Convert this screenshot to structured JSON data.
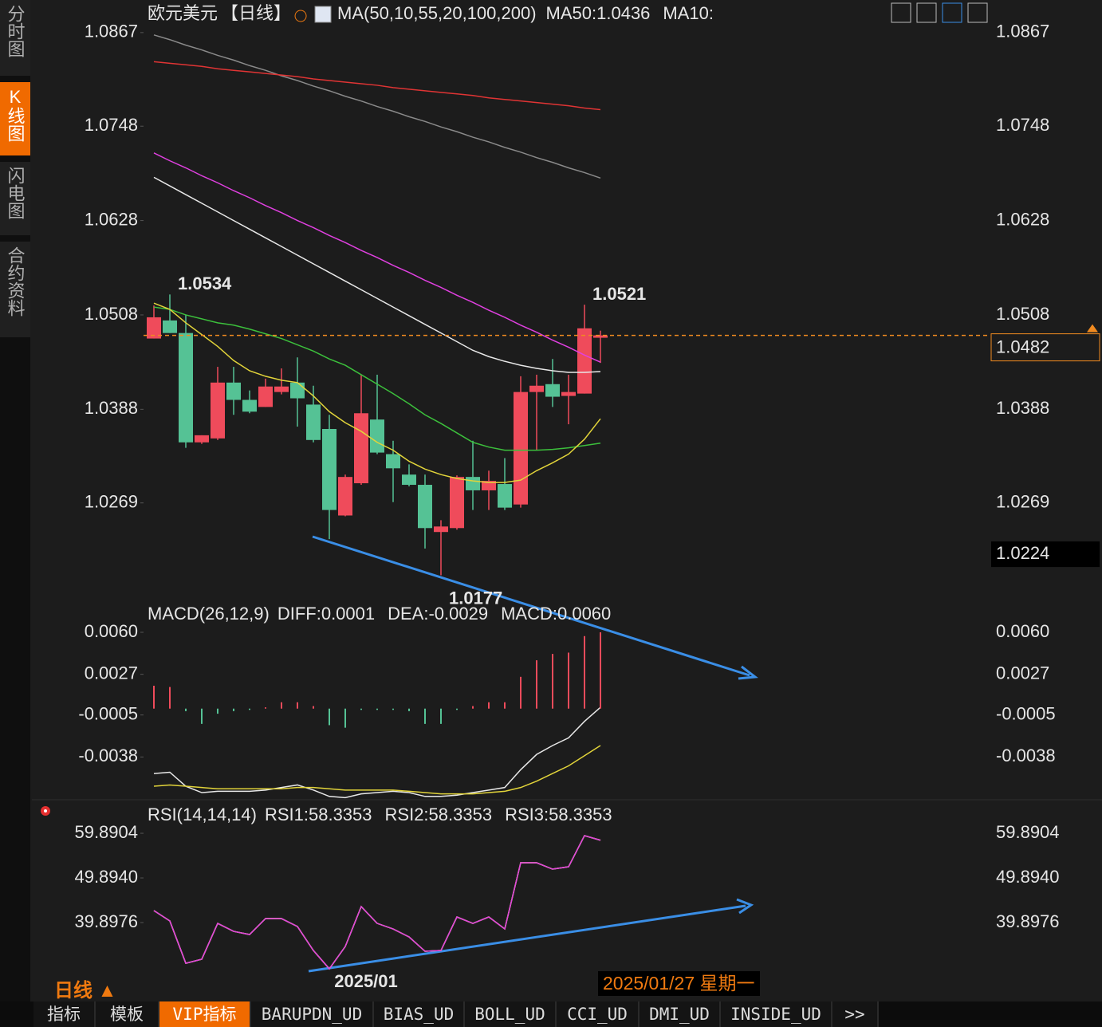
{
  "sidebar": {
    "tabs": [
      "分时图",
      "K线图",
      "闪电图",
      "合约资料"
    ],
    "active_tab": 1
  },
  "chart_data": [
    {
      "type": "candlestick",
      "title": "欧元美元",
      "period": "【日线】",
      "indicator": "MA(50,10,55,20,100,200)",
      "categories": [
        null,
        null,
        null,
        null,
        null,
        null,
        null,
        null,
        null,
        null,
        null,
        null,
        null,
        "2025/01",
        null,
        null,
        null,
        null,
        null,
        null,
        null,
        null,
        null,
        null,
        null,
        null,
        null,
        null,
        null
      ],
      "open": [
        1.0478,
        1.0501,
        1.0485,
        1.0346,
        1.0351,
        1.0422,
        1.04,
        1.0391,
        1.041,
        1.0422,
        1.0394,
        1.0363,
        1.0253,
        1.0294,
        1.0375,
        1.0331,
        1.0305,
        1.0292,
        1.0232,
        1.0237,
        1.0302,
        1.0285,
        1.0293,
        1.0267,
        1.041,
        1.042,
        1.0405,
        1.0408,
        1.0479
      ],
      "high": [
        1.052,
        1.0534,
        1.0508,
        1.0355,
        1.0442,
        1.0442,
        1.0412,
        1.0427,
        1.044,
        1.0454,
        1.0418,
        1.0381,
        1.0305,
        1.0432,
        1.0432,
        1.0348,
        1.0318,
        1.0305,
        1.0247,
        1.0304,
        1.0348,
        1.031,
        1.0326,
        1.043,
        1.0432,
        1.0452,
        1.0432,
        1.0521,
        1.0488
      ],
      "low": [
        1.0478,
        1.0485,
        1.0339,
        1.0344,
        1.0349,
        1.0381,
        1.0383,
        1.0391,
        1.0407,
        1.0366,
        1.0346,
        1.0223,
        1.0252,
        1.0292,
        1.0331,
        1.027,
        1.029,
        1.0211,
        1.0177,
        1.0235,
        1.026,
        1.026,
        1.026,
        1.0263,
        1.0336,
        1.0391,
        1.0369,
        1.0408,
        1.0447
      ],
      "close": [
        1.0505,
        1.0485,
        1.0346,
        1.0355,
        1.0422,
        1.04,
        1.0385,
        1.0417,
        1.0417,
        1.0402,
        1.0349,
        1.026,
        1.0302,
        1.0383,
        1.0333,
        1.0313,
        1.0292,
        1.0237,
        1.0239,
        1.0302,
        1.0285,
        1.0297,
        1.0263,
        1.041,
        1.0418,
        1.0404,
        1.041,
        1.0491,
        1.0482
      ],
      "high_labels": [
        null,
        "1.0534",
        null,
        null,
        null,
        null,
        null,
        null,
        null,
        null,
        null,
        null,
        null,
        null,
        null,
        null,
        null,
        null,
        null,
        null,
        null,
        null,
        null,
        null,
        null,
        null,
        null,
        "1.0521",
        null
      ],
      "low_labels": [
        null,
        null,
        null,
        null,
        null,
        null,
        null,
        null,
        null,
        null,
        null,
        null,
        null,
        null,
        null,
        null,
        null,
        null,
        "1.0177",
        null,
        null,
        null,
        null,
        null,
        null,
        null,
        null,
        null,
        null
      ],
      "up_color": "#ef4b5b",
      "down_color": "#55c295",
      "series": [
        {
          "color": "#8a8a8a",
          "values": [
            1.0864,
            1.0858,
            1.0851,
            1.0845,
            1.0838,
            1.0832,
            1.0825,
            1.0819,
            1.0812,
            1.0806,
            1.0799,
            1.0793,
            1.0786,
            1.078,
            1.0773,
            1.0767,
            1.076,
            1.0754,
            1.0747,
            1.0741,
            1.0734,
            1.0728,
            1.0721,
            1.0715,
            1.0708,
            1.0702,
            1.0695,
            1.0689,
            1.0682
          ]
        },
        {
          "color": "#e03434",
          "values": [
            1.083,
            1.0828,
            1.0826,
            1.0824,
            1.0821,
            1.0819,
            1.0817,
            1.0815,
            1.0813,
            1.0811,
            1.0808,
            1.0806,
            1.0804,
            1.0802,
            1.08,
            1.0797,
            1.0795,
            1.0793,
            1.0791,
            1.0789,
            1.0787,
            1.0784,
            1.0782,
            1.078,
            1.0778,
            1.0776,
            1.0774,
            1.0771,
            1.0769
          ]
        },
        {
          "color": "#e040e0",
          "values": [
            1.0714,
            1.0704,
            1.0695,
            1.0685,
            1.0676,
            1.0666,
            1.0657,
            1.0647,
            1.0638,
            1.0628,
            1.0619,
            1.0609,
            1.06,
            1.059,
            1.0581,
            1.0571,
            1.0562,
            1.0552,
            1.0543,
            1.0533,
            1.0524,
            1.0514,
            1.0505,
            1.0495,
            1.0486,
            1.0476,
            1.0467,
            1.0457,
            1.0448
          ]
        },
        {
          "name": "MA50:1.0436",
          "color": "#e8e8e8",
          "values": [
            1.0683,
            1.0672,
            1.0661,
            1.065,
            1.0639,
            1.0628,
            1.0617,
            1.0606,
            1.0595,
            1.0584,
            1.0573,
            1.0562,
            1.0551,
            1.054,
            1.0529,
            1.0518,
            1.0507,
            1.0496,
            1.0485,
            1.0474,
            1.0463,
            1.0455,
            1.0449,
            1.0444,
            1.044,
            1.0437,
            1.0435,
            1.0435,
            1.0436
          ]
        },
        {
          "color": "#3cc03c",
          "values": [
            1.0518,
            1.0515,
            1.0508,
            1.0503,
            1.0498,
            1.0495,
            1.049,
            1.0484,
            1.0478,
            1.047,
            1.0462,
            1.0452,
            1.0444,
            1.0432,
            1.042,
            1.0408,
            1.0395,
            1.0381,
            1.037,
            1.0358,
            1.0346,
            1.034,
            1.0336,
            1.0336,
            1.0336,
            1.0337,
            1.0339,
            1.0342,
            1.0345
          ]
        },
        {
          "name": "MA10:",
          "color": "#e2d43a",
          "values": [
            1.0523,
            1.0515,
            1.0498,
            1.0483,
            1.0468,
            1.045,
            1.0437,
            1.043,
            1.0425,
            1.0422,
            1.0405,
            1.0385,
            1.0371,
            1.036,
            1.0346,
            1.0336,
            1.0322,
            1.0312,
            1.0305,
            1.03,
            1.0297,
            1.0295,
            1.0295,
            1.0298,
            1.031,
            1.032,
            1.0331,
            1.035,
            1.0376
          ]
        }
      ],
      "last_price": 1.0482,
      "cursor_price": 1.0224,
      "ylim": [
        1.0143,
        1.0878
      ],
      "yticks": [
        1.0867,
        1.0748,
        1.0628,
        1.0508,
        1.0388,
        1.0269
      ]
    },
    {
      "type": "macd",
      "title": "MACD(26,12,9)",
      "up_color": "#ef4b5b",
      "down_color": "#55c295",
      "series": [
        {
          "name": "DIFF:0.0001",
          "color": "#e8e8e8",
          "values": [
            -0.0051,
            -0.005,
            -0.0061,
            -0.0066,
            -0.0065,
            -0.0065,
            -0.0065,
            -0.0064,
            -0.0062,
            -0.006,
            -0.0064,
            -0.0069,
            -0.007,
            -0.0067,
            -0.0066,
            -0.0065,
            -0.0066,
            -0.0069,
            -0.0069,
            -0.0068,
            -0.0066,
            -0.0064,
            -0.0062,
            -0.0048,
            -0.0036,
            -0.0029,
            -0.0023,
            -0.001,
            0.0001
          ]
        },
        {
          "name": "DEA:-0.0029",
          "color": "#e2d43a",
          "values": [
            -0.0061,
            -0.006,
            -0.0061,
            -0.0062,
            -0.0063,
            -0.0063,
            -0.0063,
            -0.0063,
            -0.0063,
            -0.0062,
            -0.0062,
            -0.0063,
            -0.0064,
            -0.0064,
            -0.0064,
            -0.0064,
            -0.0065,
            -0.0066,
            -0.0067,
            -0.0067,
            -0.0067,
            -0.0066,
            -0.0065,
            -0.0062,
            -0.0057,
            -0.0051,
            -0.0045,
            -0.0037,
            -0.0029
          ]
        },
        {
          "name": "MACD:0.0060",
          "color": "#e040e0",
          "type": "bar",
          "values": [
            0.0018,
            0.0017,
            -0.0002,
            -0.0012,
            -0.0004,
            -0.0002,
            -0.0001,
            0.0001,
            0.0005,
            0.0005,
            0.0002,
            -0.0013,
            -0.0015,
            -0.0001,
            -0.0001,
            -0.0001,
            -0.0002,
            -0.0012,
            -0.0012,
            -0.0001,
            0.0002,
            0.0005,
            0.0005,
            0.0025,
            0.0038,
            0.0043,
            0.0044,
            0.0057,
            0.006
          ]
        }
      ],
      "ylim": [
        -0.0071,
        0.0065
      ],
      "yticks": [
        {
          "value": 0.006,
          "label": "0.0060"
        },
        0.0027,
        -0.0005,
        -0.0038
      ]
    },
    {
      "type": "line",
      "title": "RSI(14,14,14)",
      "series": [
        {
          "name": "RSI1:58.3353",
          "color": "#e8e8e8",
          "values": [
            42.58,
            40.25,
            30.79,
            31.69,
            39.72,
            37.93,
            37.22,
            40.79,
            40.79,
            39.01,
            33.65,
            29.54,
            34.54,
            43.47,
            39.72,
            38.47,
            36.68,
            33.47,
            33.65,
            41.15,
            39.72,
            41.15,
            38.47,
            53.29,
            53.29,
            51.86,
            52.39,
            59.35,
            58.3353
          ]
        },
        {
          "name": "RSI2:58.3353",
          "color": "#e2d43a",
          "values": [
            42.58,
            40.25,
            30.79,
            31.69,
            39.72,
            37.93,
            37.22,
            40.79,
            40.79,
            39.01,
            33.65,
            29.54,
            34.54,
            43.47,
            39.72,
            38.47,
            36.68,
            33.47,
            33.65,
            41.15,
            39.72,
            41.15,
            38.47,
            53.29,
            53.29,
            51.86,
            52.39,
            59.35,
            58.3353
          ]
        },
        {
          "name": "RSI3:58.3353",
          "color": "#e040e0",
          "values": [
            42.58,
            40.25,
            30.79,
            31.69,
            39.72,
            37.93,
            37.22,
            40.79,
            40.79,
            39.01,
            33.65,
            29.54,
            34.54,
            43.47,
            39.72,
            38.47,
            36.68,
            33.47,
            33.65,
            41.15,
            39.72,
            41.15,
            38.47,
            53.29,
            53.29,
            51.86,
            52.39,
            59.35,
            58.3353
          ]
        }
      ],
      "ylim": [
        28.3,
        61.68
      ],
      "yticks": [
        59.8904,
        {
          "value": 49.894,
          "label": "49.8940"
        },
        39.8976
      ]
    }
  ],
  "footer": {
    "period_label": "日线 ▲",
    "date_label": "2025/01/27 星期一",
    "tabs": [
      "指标",
      "模板",
      "VIP指标",
      "BARUPDN_UD",
      "BIAS_UD",
      "BOLL_UD",
      "CCI_UD",
      "DMI_UD",
      "INSIDE_UD",
      ">>"
    ],
    "active_tab": 2
  }
}
